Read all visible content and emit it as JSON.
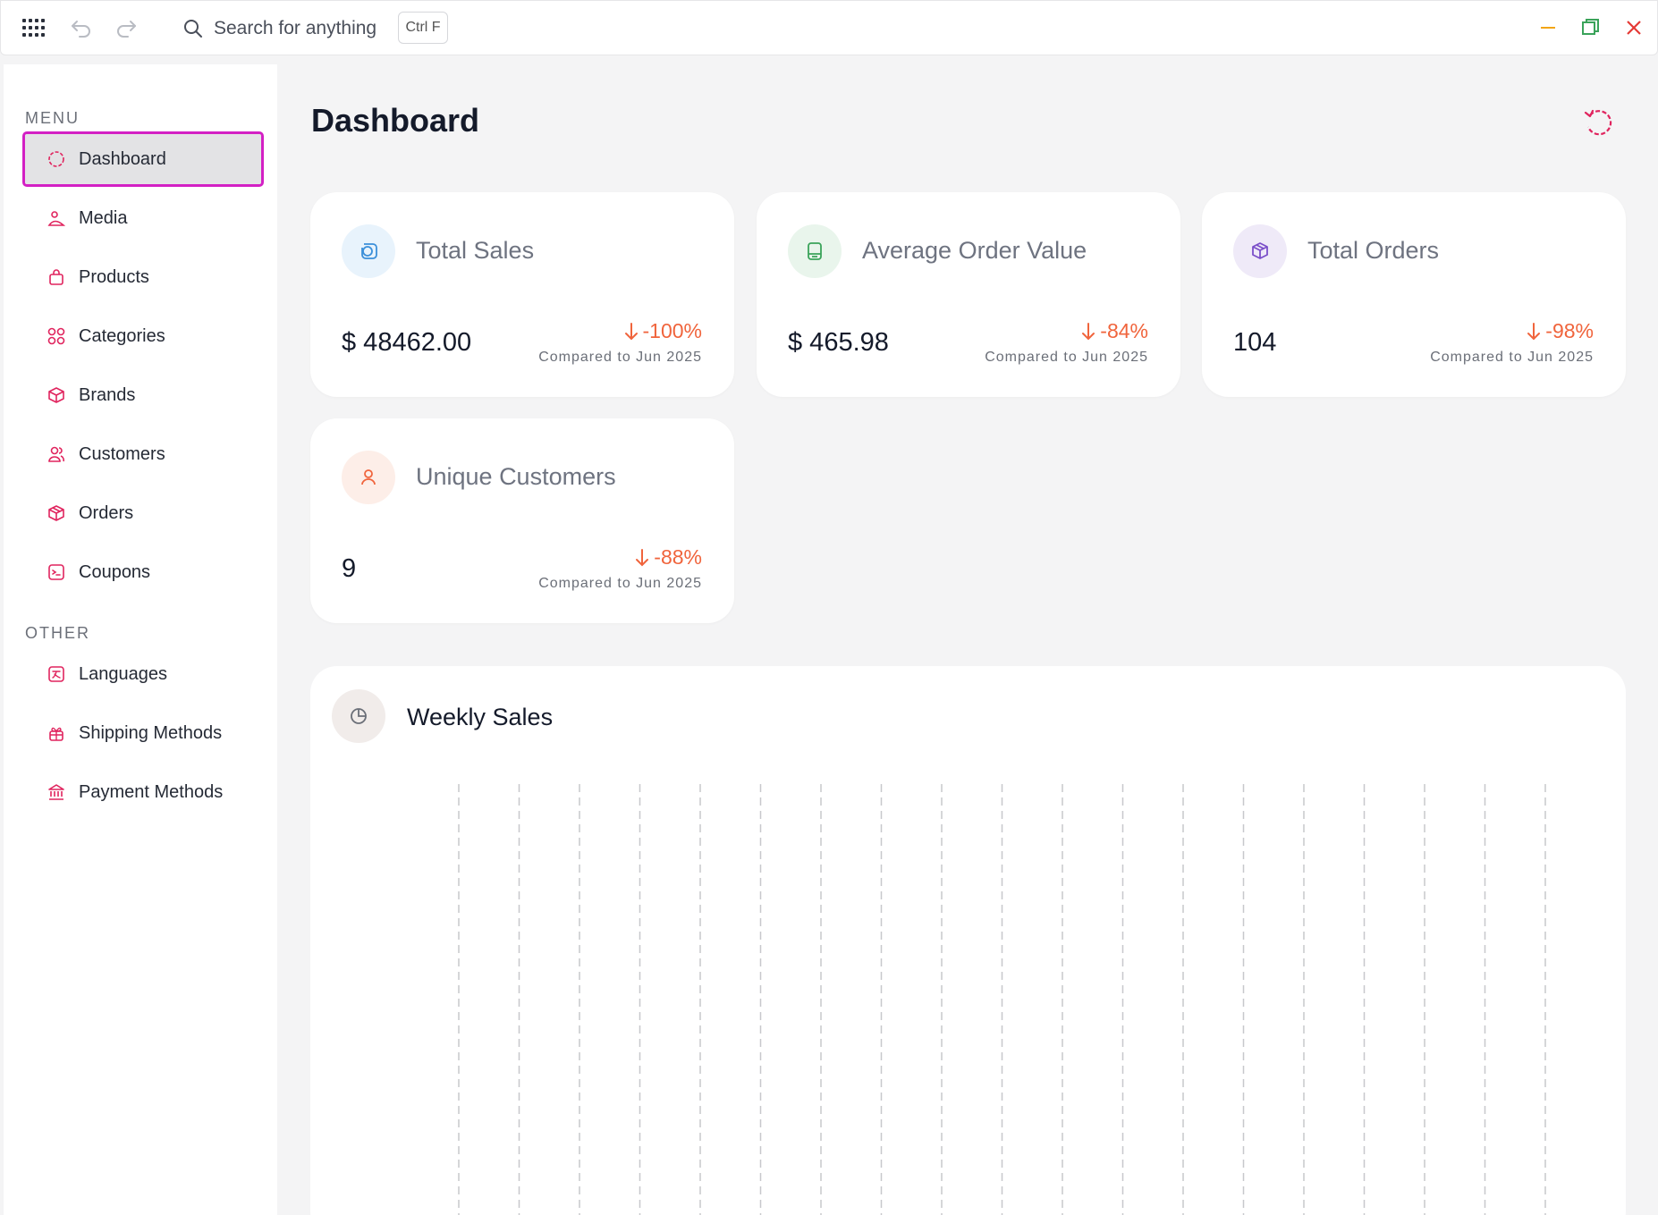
{
  "toolbar": {
    "search_label": "Search for anything",
    "shortcut": "Ctrl F"
  },
  "sidebar": {
    "menu_label": "MENU",
    "other_label": "OTHER",
    "menu_items": [
      {
        "label": "Dashboard",
        "icon": "circle-dashed-icon",
        "active": true
      },
      {
        "label": "Media",
        "icon": "images-icon"
      },
      {
        "label": "Products",
        "icon": "shopping-bag-icon"
      },
      {
        "label": "Categories",
        "icon": "grid-icon"
      },
      {
        "label": "Brands",
        "icon": "box-icon"
      },
      {
        "label": "Customers",
        "icon": "users-icon"
      },
      {
        "label": "Orders",
        "icon": "package-icon"
      },
      {
        "label": "Coupons",
        "icon": "ticket-icon"
      }
    ],
    "other_items": [
      {
        "label": "Languages",
        "icon": "translate-icon"
      },
      {
        "label": "Shipping Methods",
        "icon": "gift-icon"
      },
      {
        "label": "Payment Methods",
        "icon": "bank-icon"
      }
    ]
  },
  "main": {
    "title": "Dashboard",
    "cards": [
      {
        "title": "Total Sales",
        "value": "$ 48462.00",
        "change": "-100%",
        "compare": "Compared to Jun 2025",
        "icon": "coins-icon",
        "icon_bg": "#e8f3fc",
        "icon_color": "#3b8fd9"
      },
      {
        "title": "Average Order Value",
        "value": "$ 465.98",
        "change": "-84%",
        "compare": "Compared to Jun 2025",
        "icon": "receipt-icon",
        "icon_bg": "#e9f5ec",
        "icon_color": "#3aa35a"
      },
      {
        "title": "Total Orders",
        "value": "104",
        "change": "-98%",
        "compare": "Compared to Jun 2025",
        "icon": "package-icon",
        "icon_bg": "#efeaf8",
        "icon_color": "#7b4fc9"
      },
      {
        "title": "Unique Customers",
        "value": "9",
        "change": "-88%",
        "compare": "Compared to Jun 2025",
        "icon": "user-icon",
        "icon_bg": "#fdeee8",
        "icon_color": "#f0643c"
      }
    ],
    "chart": {
      "title": "Weekly Sales",
      "icon": "pie-chart-icon"
    }
  },
  "colors": {
    "accent": "#e0245e",
    "active_outline": "#d320c4",
    "negative": "#f0643c"
  }
}
